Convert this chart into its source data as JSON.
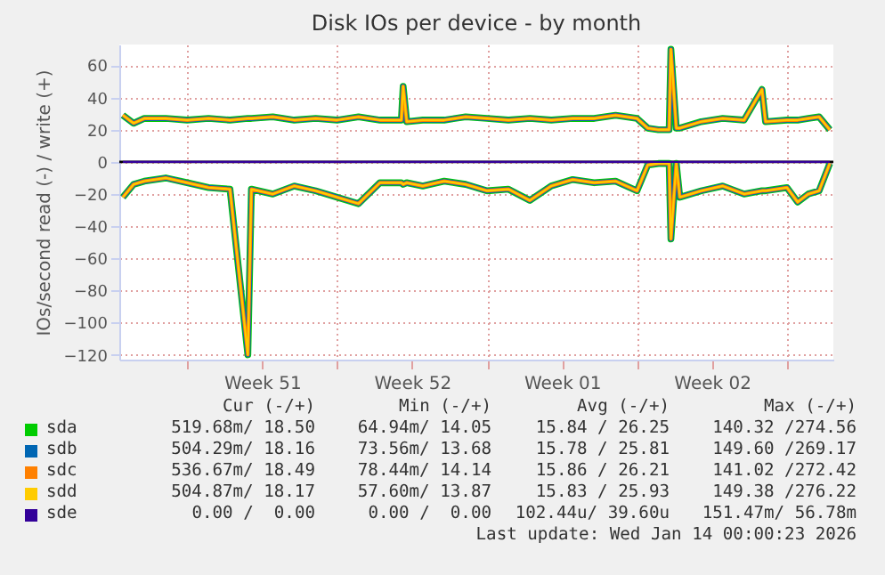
{
  "chart_data": {
    "type": "line",
    "title": "Disk IOs per device - by month",
    "ylabel": "IOs/second read (-) / write (+)",
    "x": [
      "2025-12-12T00:00",
      "2025-12-12T12:00",
      "2025-12-13T00:00",
      "2025-12-14T00:00",
      "2025-12-15T00:00",
      "2025-12-16T00:00",
      "2025-12-17T00:00",
      "2025-12-17T20:00",
      "2025-12-18T00:00",
      "2025-12-19T00:00",
      "2025-12-20T00:00",
      "2025-12-21T00:00",
      "2025-12-22T00:00",
      "2025-12-23T00:00",
      "2025-12-24T00:00",
      "2025-12-25T00:00",
      "2025-12-25T02:00",
      "2025-12-25T06:00",
      "2025-12-26T00:00",
      "2025-12-27T00:00",
      "2025-12-28T00:00",
      "2025-12-29T00:00",
      "2025-12-30T00:00",
      "2025-12-31T00:00",
      "2026-01-01T00:00",
      "2026-01-02T00:00",
      "2026-01-03T00:00",
      "2026-01-04T00:00",
      "2026-01-05T00:00",
      "2026-01-05T12:00",
      "2026-01-06T00:00",
      "2026-01-06T12:00",
      "2026-01-06T14:00",
      "2026-01-06T20:00",
      "2026-01-07T00:00",
      "2026-01-08T00:00",
      "2026-01-09T00:00",
      "2026-01-10T00:00",
      "2026-01-10T20:00",
      "2026-01-11T00:00",
      "2026-01-12T00:00",
      "2026-01-12T12:00",
      "2026-01-13T00:00",
      "2026-01-13T12:00",
      "2026-01-14T00:00"
    ],
    "series": [
      {
        "name": "sda",
        "color": "#00cc00",
        "values": [
          29,
          24,
          27,
          27,
          26,
          27,
          26,
          27,
          27,
          28,
          26,
          27,
          26,
          28,
          26,
          26,
          47,
          25,
          26,
          26,
          28,
          27,
          26,
          27,
          26,
          27,
          27,
          29,
          27,
          21,
          20,
          20,
          70,
          21,
          21,
          25,
          27,
          26,
          45,
          25,
          26,
          26,
          27,
          28,
          20
        ]
      },
      {
        "color": "#00cc00",
        "values": [
          -22,
          -14,
          -12,
          -10,
          -13,
          -16,
          -17,
          -120,
          -17,
          -20,
          -15,
          -18,
          -22,
          -26,
          -13,
          -13,
          -14,
          -13,
          -15,
          -12,
          -14,
          -18,
          -17,
          -24,
          -15,
          -11,
          -13,
          -12,
          -18,
          -2,
          -1,
          -1,
          -48,
          -1,
          -22,
          -18,
          -15,
          -20,
          -18,
          -18,
          -16,
          -25,
          -20,
          -18,
          -1
        ]
      },
      {
        "name": "sdb",
        "color": "#0066b3",
        "values": [
          29,
          24,
          27,
          27,
          26,
          27,
          26,
          27,
          27,
          28,
          26,
          27,
          26,
          28,
          26,
          26,
          47,
          25,
          26,
          26,
          28,
          27,
          26,
          27,
          26,
          27,
          27,
          29,
          27,
          21,
          20,
          20,
          70,
          21,
          21,
          25,
          27,
          26,
          45,
          25,
          26,
          26,
          27,
          28,
          20
        ]
      },
      {
        "color": "#0066b3",
        "values": [
          -22,
          -14,
          -12,
          -10,
          -13,
          -16,
          -17,
          -120,
          -17,
          -20,
          -15,
          -18,
          -22,
          -26,
          -13,
          -13,
          -14,
          -13,
          -15,
          -12,
          -14,
          -18,
          -17,
          -24,
          -15,
          -11,
          -13,
          -12,
          -18,
          -2,
          -1,
          -1,
          -48,
          -1,
          -22,
          -18,
          -15,
          -20,
          -18,
          -18,
          -16,
          -25,
          -20,
          -18,
          -1
        ]
      },
      {
        "name": "sdc",
        "color": "#ff8000",
        "values": [
          29,
          24,
          27,
          27,
          26,
          27,
          26,
          27,
          27,
          28,
          26,
          27,
          26,
          28,
          26,
          26,
          47,
          25,
          26,
          26,
          28,
          27,
          26,
          27,
          26,
          27,
          27,
          29,
          27,
          21,
          20,
          20,
          70,
          21,
          21,
          25,
          27,
          26,
          45,
          25,
          26,
          26,
          27,
          28,
          20
        ]
      },
      {
        "color": "#ff8000",
        "values": [
          -22,
          -14,
          -12,
          -10,
          -13,
          -16,
          -17,
          -120,
          -17,
          -20,
          -15,
          -18,
          -22,
          -26,
          -13,
          -13,
          -14,
          -13,
          -15,
          -12,
          -14,
          -18,
          -17,
          -24,
          -15,
          -11,
          -13,
          -12,
          -18,
          -2,
          -1,
          -1,
          -48,
          -1,
          -22,
          -18,
          -15,
          -20,
          -18,
          -18,
          -16,
          -25,
          -20,
          -18,
          -1
        ]
      },
      {
        "name": "sdd",
        "color": "#ffcc00",
        "values": [
          29,
          24,
          27,
          27,
          26,
          27,
          26,
          27,
          27,
          28,
          26,
          27,
          26,
          28,
          26,
          26,
          47,
          25,
          26,
          26,
          28,
          27,
          26,
          27,
          26,
          27,
          27,
          29,
          27,
          21,
          20,
          20,
          70,
          21,
          21,
          25,
          27,
          26,
          45,
          25,
          26,
          26,
          27,
          28,
          20
        ]
      },
      {
        "color": "#ffcc00",
        "values": [
          -22,
          -14,
          -12,
          -10,
          -13,
          -16,
          -17,
          -120,
          -17,
          -20,
          -15,
          -18,
          -22,
          -26,
          -13,
          -13,
          -14,
          -13,
          -15,
          -12,
          -14,
          -18,
          -17,
          -24,
          -15,
          -11,
          -13,
          -12,
          -18,
          -2,
          -1,
          -1,
          -48,
          -1,
          -22,
          -18,
          -15,
          -20,
          -18,
          -18,
          -16,
          -25,
          -20,
          -18,
          -1
        ]
      },
      {
        "name": "sde",
        "color": "#330099",
        "values": [
          0,
          0,
          0,
          0,
          0,
          0,
          0,
          0,
          0,
          0,
          0,
          0,
          0,
          0,
          0,
          0,
          0,
          0,
          0,
          0,
          0,
          0,
          0,
          0,
          0,
          0,
          0,
          0,
          0,
          0,
          0,
          0,
          0,
          0,
          0,
          0,
          0,
          0,
          0,
          0,
          0,
          0,
          0,
          0,
          0
        ]
      }
    ],
    "xlim": [
      "2025-12-11T20:00",
      "2026-01-14T04:00"
    ],
    "xticks": [
      {
        "value": "2025-12-15T00:00",
        "label": null
      },
      {
        "value": "2025-12-18T12:00",
        "label": "Week 51"
      },
      {
        "value": "2025-12-22T00:00",
        "label": null
      },
      {
        "value": "2025-12-25T12:00",
        "label": "Week 52"
      },
      {
        "value": "2025-12-29T00:00",
        "label": null
      },
      {
        "value": "2026-01-01T12:00",
        "label": "Week 01"
      },
      {
        "value": "2026-01-05T00:00",
        "label": null
      },
      {
        "value": "2026-01-08T12:00",
        "label": "Week 02"
      },
      {
        "value": "2026-01-12T00:00",
        "label": null
      }
    ],
    "ylim": [
      -123,
      73
    ],
    "yticks": [
      -120,
      -100,
      -80,
      -60,
      -40,
      -20,
      0,
      20,
      40,
      60
    ],
    "grid": true,
    "legend": "bottom",
    "ref_lines": [
      {
        "axis": "y",
        "value": 0,
        "color": "#000000"
      }
    ],
    "annotations": [
      "Cur (-/+)",
      "Min (-/+)",
      "Avg (-/+)",
      "Max (-/+)",
      "519.68m/ 18.50",
      "64.94m/ 14.05",
      "15.84 / 26.25",
      "140.32 /274.56",
      "504.29m/ 18.16",
      "73.56m/ 13.68",
      "15.78 / 25.81",
      "149.60 /269.17",
      "536.67m/ 18.49",
      "78.44m/ 14.14",
      "15.86 / 26.21",
      "141.02 /272.42",
      "504.87m/ 18.17",
      "57.60m/ 13.87",
      "15.83 / 25.93",
      "149.38 /276.22",
      "0.00 /  0.00",
      "0.00 /  0.00",
      "102.44u/ 39.60u",
      "151.47m/ 56.78m",
      "Last update: Wed Jan 14 00:00:23 2026"
    ]
  }
}
